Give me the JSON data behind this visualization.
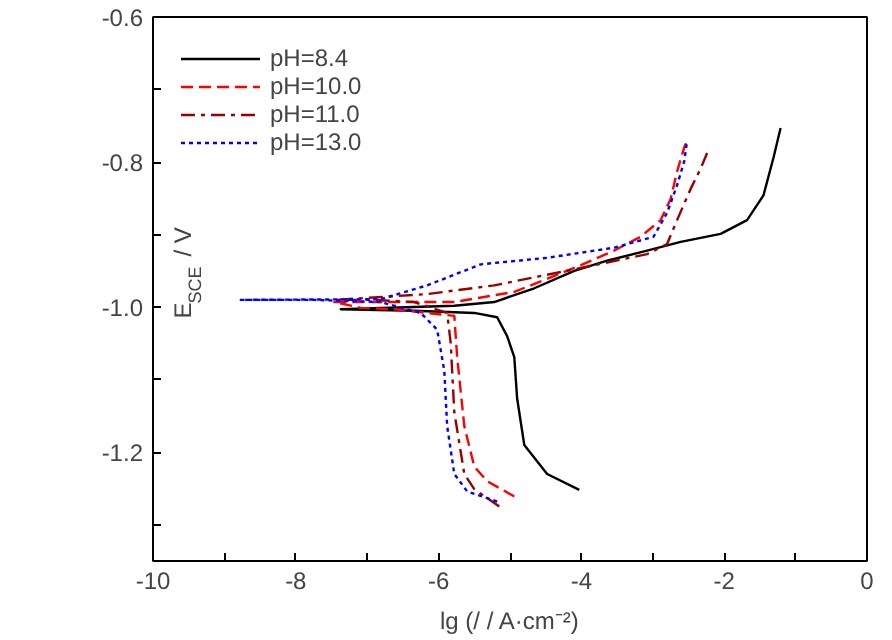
{
  "chart_data": {
    "type": "line",
    "xlabel": "lg (/ / A·cm⁻²)",
    "ylabel": "E$_{SCE}$ / V",
    "xlim": [
      -10,
      0
    ],
    "ylim": [
      -1.35,
      -0.6
    ],
    "xticks": [
      -10,
      {
        "value": -9,
        "label": null
      },
      -8,
      {
        "value": -7,
        "label": null
      },
      -6,
      {
        "value": -5,
        "label": null
      },
      -4,
      {
        "value": -3,
        "label": null
      },
      -2,
      {
        "value": -1,
        "label": null
      },
      0
    ],
    "yticks": [
      {
        "value": -1.3,
        "label": null
      },
      -1.2,
      {
        "value": -1.1,
        "label": null
      },
      {
        "value": -1.0,
        "label": "-1.0"
      },
      {
        "value": -0.9,
        "label": null
      },
      -0.8,
      {
        "value": -0.7,
        "label": null
      },
      -0.6
    ],
    "grid": false,
    "legend": "top left",
    "marker": "none",
    "series": [
      {
        "name": "pH=8.4",
        "color": "#000000",
        "line_style": "solid",
        "x": [
          -4.03,
          -4.48,
          -4.8,
          -4.9,
          -4.94,
          -5.04,
          -5.18,
          -5.5,
          -6.34,
          -7.37,
          -5.78,
          -5.22,
          -4.66,
          -4.1,
          -3.64,
          -3.08,
          -2.61,
          -2.05,
          -1.68,
          -1.45,
          -1.31,
          -1.21
        ],
        "values": [
          -1.252,
          -1.23,
          -1.19,
          -1.126,
          -1.069,
          -1.04,
          -1.014,
          -1.008,
          -1.005,
          -1.003,
          -0.998,
          -0.993,
          -0.974,
          -0.95,
          -0.936,
          -0.922,
          -0.91,
          -0.899,
          -0.88,
          -0.846,
          -0.794,
          -0.753
        ]
      },
      {
        "name": "pH=10.0",
        "color": "#ff0000",
        "line_style": "dashed",
        "x": [
          -4.94,
          -5.32,
          -5.5,
          -5.64,
          -5.74,
          -5.78,
          -6.16,
          -6.62,
          -7.09,
          -7.46,
          -5.78,
          -4.94,
          -4.1,
          -3.54,
          -3.17,
          -2.89,
          -2.75,
          -2.66,
          -2.56,
          -2.52
        ],
        "values": [
          -1.261,
          -1.24,
          -1.22,
          -1.164,
          -1.069,
          -1.012,
          -1.008,
          -1.003,
          -1.001,
          -0.993,
          -0.993,
          -0.979,
          -0.946,
          -0.922,
          -0.903,
          -0.88,
          -0.851,
          -0.813,
          -0.78,
          -0.771
        ]
      },
      {
        "name": "pH=11.0",
        "color": "#990000",
        "line_style": "dashdot",
        "x": [
          -5.15,
          -5.5,
          -5.64,
          -5.78,
          -5.83,
          -5.88,
          -6.34,
          -6.9,
          -7.46,
          -6.16,
          -5.22,
          -4.01,
          -3.08,
          -2.8,
          -2.66,
          -2.47,
          -2.33,
          -2.22
        ],
        "values": [
          -1.275,
          -1.251,
          -1.23,
          -1.145,
          -1.05,
          -1.008,
          -0.993,
          -0.99,
          -0.99,
          -0.982,
          -0.97,
          -0.946,
          -0.927,
          -0.913,
          -0.88,
          -0.837,
          -0.809,
          -0.783
        ]
      },
      {
        "name": "pH=13.0",
        "color": "#0000ff",
        "line_style": "dotted",
        "x": [
          -5.18,
          -5.6,
          -5.78,
          -5.88,
          -5.92,
          -6.02,
          -6.25,
          -6.81,
          -7.74,
          -8.77,
          -6.81,
          -6.16,
          -5.41,
          -4.48,
          -3.54,
          -2.99,
          -2.8,
          -2.66,
          -2.56,
          -2.52
        ],
        "values": [
          -1.268,
          -1.254,
          -1.23,
          -1.164,
          -1.088,
          -1.031,
          -1.008,
          -0.993,
          -0.99,
          -0.99,
          -0.989,
          -0.97,
          -0.941,
          -0.932,
          -0.918,
          -0.903,
          -0.87,
          -0.832,
          -0.799,
          -0.771
        ]
      }
    ]
  }
}
